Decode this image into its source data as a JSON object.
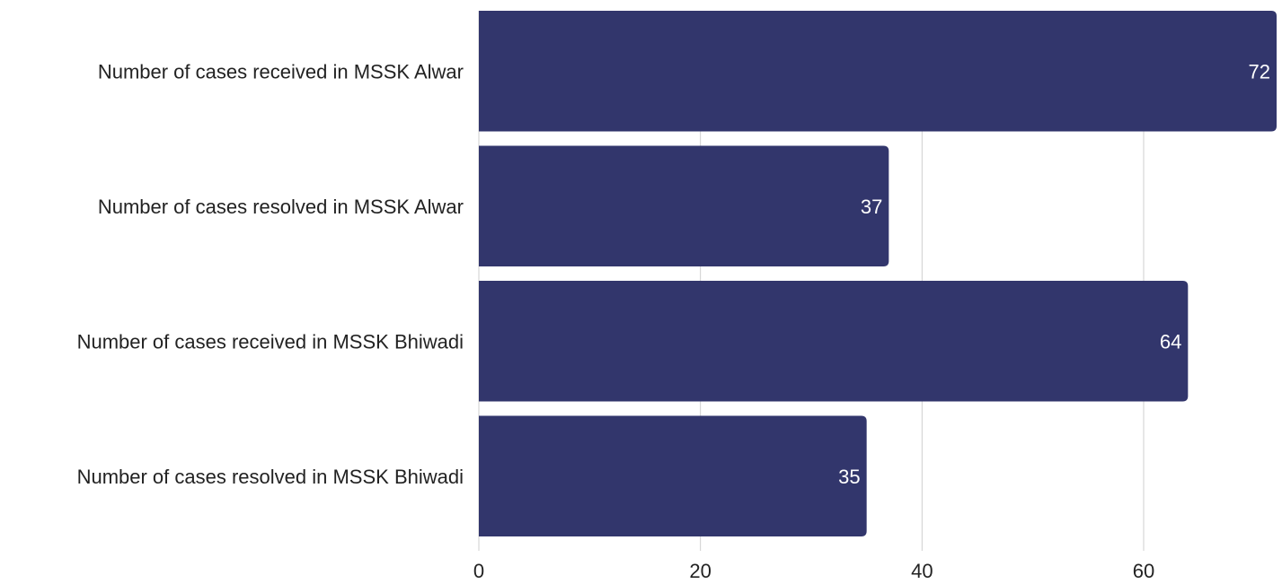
{
  "chart_data": {
    "type": "bar",
    "orientation": "horizontal",
    "categories": [
      "Number of cases received in MSSK Alwar",
      "Number of cases resolved in MSSK Alwar",
      "Number of cases received in MSSK Bhiwadi",
      "Number of cases resolved in MSSK Bhiwadi"
    ],
    "values": [
      72,
      37,
      64,
      35
    ],
    "data_labels": [
      "72",
      "37",
      "64",
      "35"
    ],
    "x_ticks": [
      0,
      20,
      40,
      60
    ],
    "x_tick_labels": [
      "0",
      "20",
      "40",
      "60"
    ],
    "xlim": [
      0,
      72
    ],
    "grid": true,
    "bar_color": "#32366c",
    "label_color": "#ffffff"
  }
}
